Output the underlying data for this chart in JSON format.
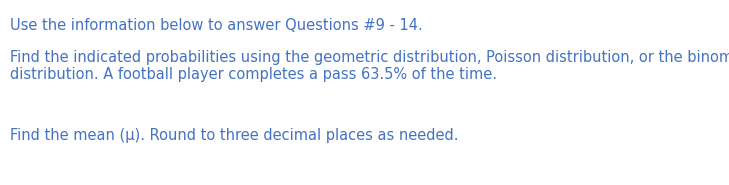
{
  "line1": "Use the information below to answer Questions #9 - 14.",
  "line2": "Find the indicated probabilities using the geometric distribution, Poisson distribution, or the binomial",
  "line3": "distribution. A football player completes a pass 63.5% of the time.",
  "line4": "Find the mean (μ). Round to three decimal places as needed.",
  "text_color": "#4472C4",
  "background_color": "#ffffff",
  "font_size": 10.5,
  "fig_width": 7.29,
  "fig_height": 1.85,
  "dpi": 100
}
